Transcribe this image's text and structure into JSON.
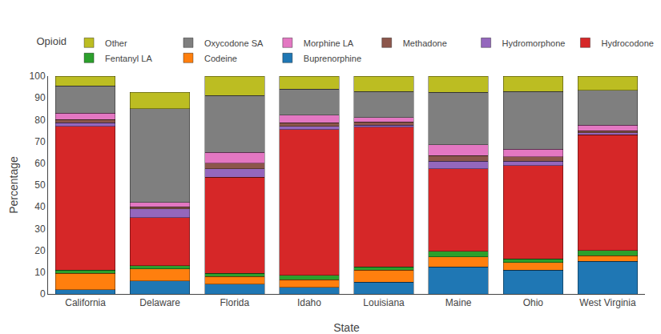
{
  "chart_data": {
    "type": "bar",
    "stacked": true,
    "title": "Opioid",
    "xlabel": "State",
    "ylabel": "Percentage",
    "categories": [
      "California",
      "Delaware",
      "Florida",
      "Idaho",
      "Louisiana",
      "Maine",
      "Ohio",
      "West Virginia"
    ],
    "series": [
      {
        "name": "Buprenorphine",
        "values": [
          2.0,
          6.0,
          4.5,
          3.0,
          5.5,
          12.5,
          11.0,
          15.0
        ]
      },
      {
        "name": "Codeine",
        "values": [
          7.5,
          5.5,
          3.5,
          3.5,
          5.5,
          4.5,
          3.5,
          2.5
        ]
      },
      {
        "name": "Fentanyl LA",
        "values": [
          1.5,
          1.5,
          1.5,
          2.0,
          1.5,
          2.5,
          1.5,
          2.5
        ]
      },
      {
        "name": "Hydrocodone",
        "values": [
          66.0,
          22.0,
          44.0,
          67.0,
          64.0,
          38.0,
          43.0,
          53.0
        ]
      },
      {
        "name": "Hydromorphone",
        "values": [
          1.5,
          4.0,
          4.0,
          1.5,
          1.0,
          3.5,
          2.0,
          1.0
        ]
      },
      {
        "name": "Methadone",
        "values": [
          1.5,
          1.0,
          2.5,
          1.5,
          1.5,
          2.5,
          2.0,
          1.0
        ]
      },
      {
        "name": "Morphine LA",
        "values": [
          3.0,
          2.0,
          5.0,
          3.5,
          2.0,
          5.0,
          3.5,
          2.5
        ]
      },
      {
        "name": "Oxycodone SA",
        "values": [
          12.5,
          43.0,
          26.0,
          12.0,
          12.0,
          24.0,
          26.5,
          16.0
        ]
      },
      {
        "name": "Other",
        "values": [
          4.5,
          7.5,
          9.0,
          6.0,
          7.0,
          7.5,
          7.0,
          6.5
        ]
      }
    ],
    "ylim": [
      0,
      100
    ],
    "yticks": [
      0,
      10,
      20,
      30,
      40,
      50,
      60,
      70,
      80,
      90,
      100
    ],
    "grid": false,
    "legend": "top"
  }
}
